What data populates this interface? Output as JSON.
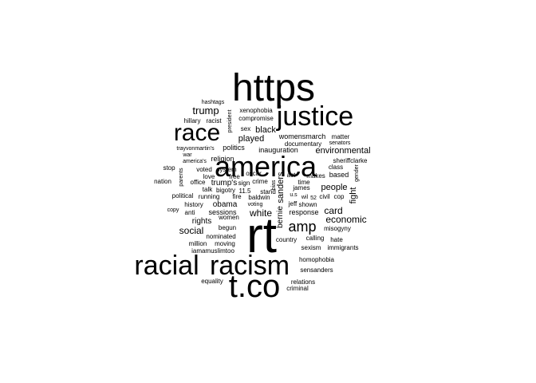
{
  "chart_data": {
    "type": "wordcloud",
    "title": "",
    "words": [
      {
        "text": "rt",
        "size": 1.0
      },
      {
        "text": "https",
        "size": 0.78
      },
      {
        "text": "t.co",
        "size": 0.68
      },
      {
        "text": "america",
        "size": 0.6
      },
      {
        "text": "racism",
        "size": 0.55
      },
      {
        "text": "justice",
        "size": 0.55
      },
      {
        "text": "racial",
        "size": 0.55
      },
      {
        "text": "race",
        "size": 0.55
      },
      {
        "text": "amp",
        "size": 0.3
      },
      {
        "text": "trump",
        "size": 0.22
      },
      {
        "text": "white",
        "size": 0.21
      },
      {
        "text": "social",
        "size": 0.21
      },
      {
        "text": "economic",
        "size": 0.21
      },
      {
        "text": "fight",
        "size": 0.21
      },
      {
        "text": "people",
        "size": 0.19
      },
      {
        "text": "card",
        "size": 0.19
      },
      {
        "text": "played",
        "size": 0.19
      },
      {
        "text": "black",
        "size": 0.19
      },
      {
        "text": "environmental",
        "size": 0.17
      },
      {
        "text": "sanders",
        "size": 0.17
      },
      {
        "text": "rights",
        "size": 0.16
      },
      {
        "text": "bernie",
        "size": 0.16
      },
      {
        "text": "obama",
        "size": 0.15
      },
      {
        "text": "sessions",
        "size": 0.15
      },
      {
        "text": "trump's",
        "size": 0.15
      },
      {
        "text": "politics",
        "size": 0.14
      },
      {
        "text": "inauguration",
        "size": 0.14
      },
      {
        "text": "religion",
        "size": 0.14
      },
      {
        "text": "womensmarch",
        "size": 0.13
      },
      {
        "text": "documentary",
        "size": 0.13
      },
      {
        "text": "matter",
        "size": 0.13
      },
      {
        "text": "sex",
        "size": 0.13
      },
      {
        "text": "hillary",
        "size": 0.13
      },
      {
        "text": "racist",
        "size": 0.13
      },
      {
        "text": "compromise",
        "size": 0.12
      },
      {
        "text": "xenophobia",
        "size": 0.12
      },
      {
        "text": "hashtags",
        "size": 0.12
      },
      {
        "text": "president",
        "size": 0.12
      },
      {
        "text": "trayvonmartin's",
        "size": 0.12
      },
      {
        "text": "war",
        "size": 0.12
      },
      {
        "text": "america's",
        "size": 0.12
      },
      {
        "text": "senators",
        "size": 0.12
      },
      {
        "text": "sheriffclarke",
        "size": 0.12
      },
      {
        "text": "class",
        "size": 0.12
      },
      {
        "text": "gender",
        "size": 0.11
      },
      {
        "text": "based",
        "size": 0.13
      },
      {
        "text": "makes",
        "size": 0.12
      },
      {
        "text": "time",
        "size": 0.12
      },
      {
        "text": "james",
        "size": 0.12
      },
      {
        "text": "act",
        "size": 0.12
      },
      {
        "text": "civil",
        "size": 0.12
      },
      {
        "text": "cop",
        "size": 0.12
      },
      {
        "text": "52",
        "size": 0.11
      },
      {
        "text": "wil",
        "size": 0.11
      },
      {
        "text": "u.s",
        "size": 0.11
      },
      {
        "text": "jeff",
        "size": 0.12
      },
      {
        "text": "shown",
        "size": 0.12
      },
      {
        "text": "response",
        "size": 0.13
      },
      {
        "text": "misogyny",
        "size": 0.12
      },
      {
        "text": "stop",
        "size": 0.12
      },
      {
        "text": "parents",
        "size": 0.11
      },
      {
        "text": "voted",
        "size": 0.12
      },
      {
        "text": "system",
        "size": 0.12
      },
      {
        "text": "love",
        "size": 0.12
      },
      {
        "text": "free",
        "size": 0.12
      },
      {
        "text": "oscar",
        "size": 0.12
      },
      {
        "text": "crime",
        "size": 0.12
      },
      {
        "text": "sign",
        "size": 0.12
      },
      {
        "text": "nation",
        "size": 0.12
      },
      {
        "text": "office",
        "size": 0.12
      },
      {
        "text": "talk",
        "size": 0.12
      },
      {
        "text": "bigotry",
        "size": 0.12
      },
      {
        "text": "stand",
        "size": 0.12
      },
      {
        "text": "bias",
        "size": 0.11
      },
      {
        "text": "political",
        "size": 0.12
      },
      {
        "text": "running",
        "size": 0.12
      },
      {
        "text": "fire",
        "size": 0.12
      },
      {
        "text": "11.5",
        "size": 0.12
      },
      {
        "text": "baldwin",
        "size": 0.12
      },
      {
        "text": "voting",
        "size": 0.11
      },
      {
        "text": "history",
        "size": 0.12
      },
      {
        "text": "copy",
        "size": 0.11
      },
      {
        "text": "anti",
        "size": 0.12
      },
      {
        "text": "women",
        "size": 0.12
      },
      {
        "text": "begun",
        "size": 0.12
      },
      {
        "text": "nominated",
        "size": 0.12
      },
      {
        "text": "million",
        "size": 0.12
      },
      {
        "text": "moving",
        "size": 0.12
      },
      {
        "text": "iamamuslimtoo",
        "size": 0.12
      },
      {
        "text": "country",
        "size": 0.12
      },
      {
        "text": "calling",
        "size": 0.12
      },
      {
        "text": "hate",
        "size": 0.12
      },
      {
        "text": "sexism",
        "size": 0.12
      },
      {
        "text": "immigrants",
        "size": 0.12
      },
      {
        "text": "homophobia",
        "size": 0.12
      },
      {
        "text": "sensanders",
        "size": 0.12
      },
      {
        "text": "equality",
        "size": 0.12
      },
      {
        "text": "relations",
        "size": 0.12
      },
      {
        "text": "criminal",
        "size": 0.12
      }
    ],
    "colors": {
      "text": "#000000",
      "background": "#ffffff"
    }
  }
}
